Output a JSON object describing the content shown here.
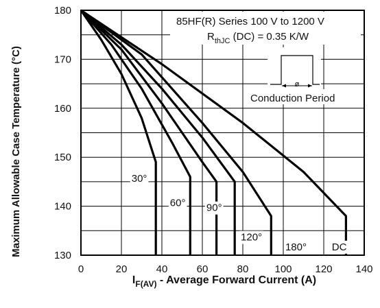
{
  "chart_data": {
    "type": "line",
    "title": "",
    "xlabel": {
      "main": "I",
      "sub": "F(AV)",
      "rest": " - Average Forward Current (A)"
    },
    "ylabel": "Maximum Allowable Case Temperature (°C)",
    "xlim": [
      0,
      140
    ],
    "ylim": [
      130,
      180
    ],
    "xticks": [
      0,
      20,
      40,
      60,
      80,
      100,
      120,
      140
    ],
    "yticks": [
      130,
      140,
      150,
      160,
      170,
      180
    ],
    "grid": true,
    "annotation": {
      "line1": "85HF(R) Series 100 V to 1200 V",
      "line2_main": "R",
      "line2_sub": "thJC",
      "line2_rest": " (DC) = 0.35 K/W",
      "phi": "ø",
      "caption": "Conduction Period"
    },
    "series": [
      {
        "name": "30°",
        "points": [
          [
            0,
            180
          ],
          [
            10,
            174
          ],
          [
            20,
            167
          ],
          [
            30,
            158
          ],
          [
            37,
            149
          ],
          [
            37,
            130
          ]
        ]
      },
      {
        "name": "60°",
        "points": [
          [
            0,
            180
          ],
          [
            15,
            173
          ],
          [
            30,
            164
          ],
          [
            45,
            153
          ],
          [
            54,
            146
          ],
          [
            54,
            130
          ]
        ]
      },
      {
        "name": "90°",
        "points": [
          [
            0,
            180
          ],
          [
            20,
            172
          ],
          [
            40,
            161
          ],
          [
            60,
            149
          ],
          [
            67,
            145
          ],
          [
            67,
            130
          ]
        ]
      },
      {
        "name": "120°",
        "points": [
          [
            0,
            180
          ],
          [
            20,
            173
          ],
          [
            40,
            164
          ],
          [
            60,
            154
          ],
          [
            76,
            145
          ],
          [
            76,
            130
          ]
        ]
      },
      {
        "name": "180°",
        "points": [
          [
            0,
            180
          ],
          [
            30,
            171
          ],
          [
            60,
            157
          ],
          [
            80,
            147
          ],
          [
            94,
            138
          ],
          [
            94,
            130
          ]
        ]
      },
      {
        "name": "DC",
        "points": [
          [
            0,
            180
          ],
          [
            40,
            169
          ],
          [
            80,
            157
          ],
          [
            110,
            147
          ],
          [
            131,
            138
          ],
          [
            131,
            130
          ]
        ]
      }
    ],
    "series_labels": [
      {
        "text": "30°",
        "x": 25,
        "y": 145
      },
      {
        "text": "60°",
        "x": 44,
        "y": 140
      },
      {
        "text": "90°",
        "x": 62,
        "y": 139
      },
      {
        "text": "120°",
        "x": 79,
        "y": 133
      },
      {
        "text": "180°",
        "x": 101,
        "y": 131
      },
      {
        "text": "DC",
        "x": 124,
        "y": 131
      }
    ]
  }
}
